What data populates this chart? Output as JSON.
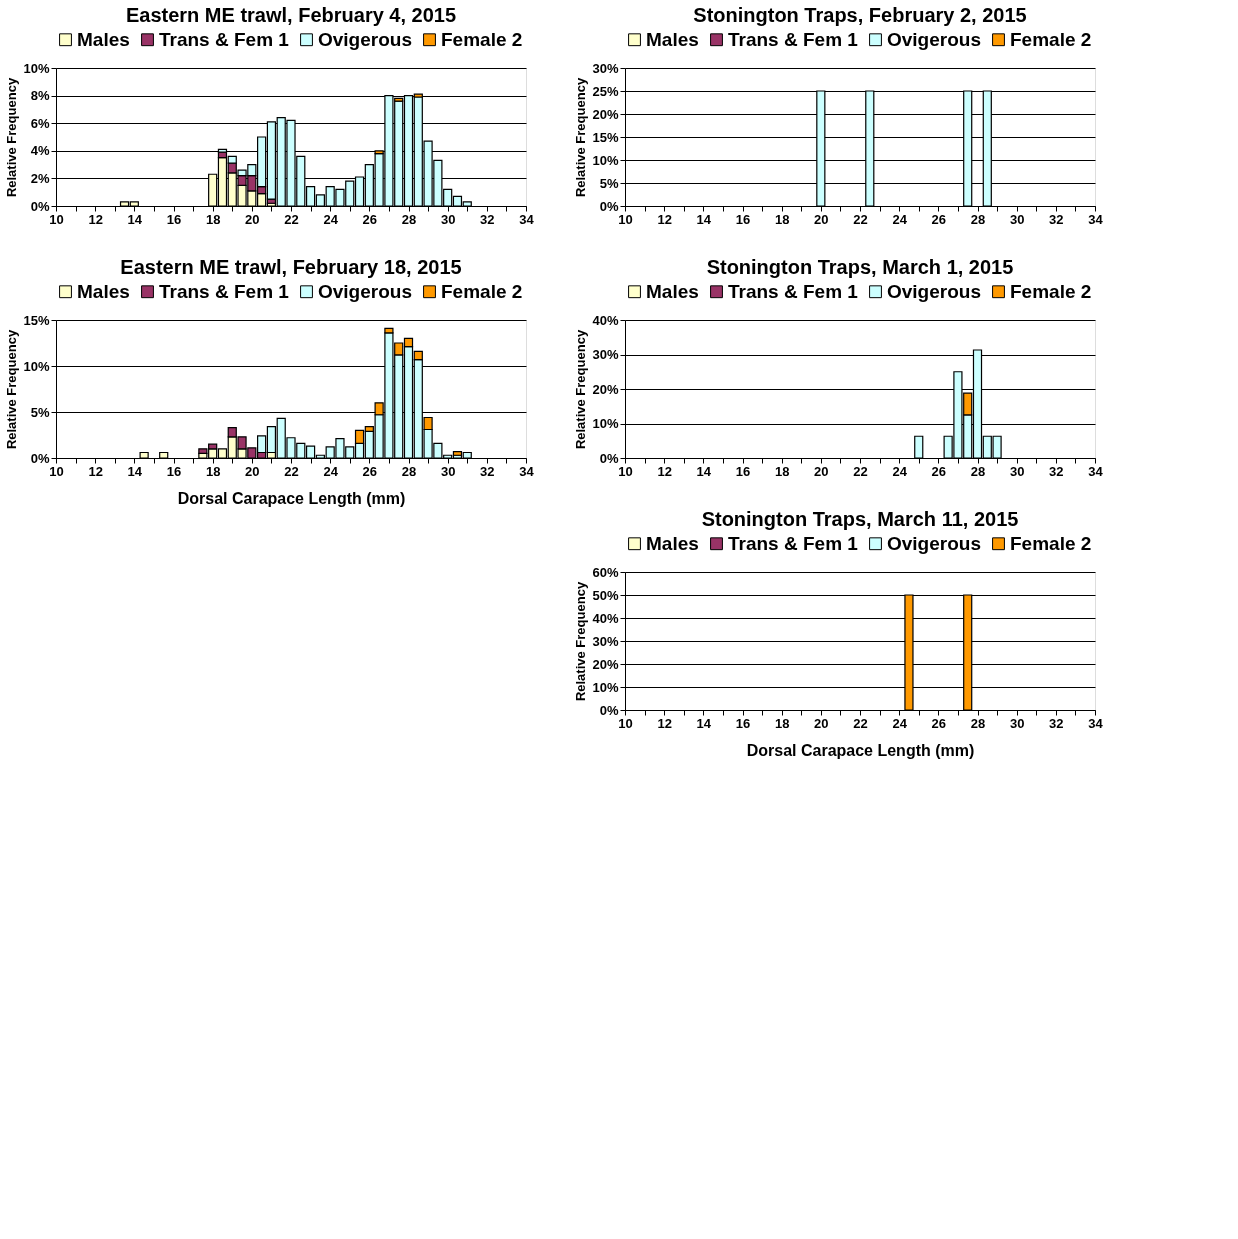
{
  "chart_data": [
    {
      "type": "bar",
      "stacked": true,
      "title": "Eastern ME trawl, February 4, 2015",
      "ylabel": "Relative Frequency",
      "legend": "top",
      "grid": "y",
      "x": [
        13.5,
        14,
        18,
        18.5,
        19,
        19.5,
        20,
        20.5,
        21,
        21.5,
        22,
        22.5,
        23,
        23.5,
        24,
        24.5,
        25,
        25.5,
        26,
        26.5,
        27,
        27.5,
        28,
        28.5,
        29,
        29.5,
        30,
        30.5,
        31
      ],
      "series": [
        {
          "name": "Males",
          "color": "#ffffcc",
          "values": [
            0.3,
            0.3,
            2.3,
            3.5,
            2.4,
            1.5,
            1.1,
            0.9,
            0.2,
            null,
            null,
            null,
            null,
            null,
            null,
            null,
            null,
            null,
            null,
            null,
            null,
            null,
            null,
            null,
            null,
            null,
            null,
            null,
            null
          ]
        },
        {
          "name": "Trans & Fem 1",
          "color": "#993366",
          "values": [
            null,
            null,
            null,
            0.4,
            0.7,
            0.7,
            1.1,
            0.5,
            0.3,
            null,
            null,
            null,
            null,
            null,
            null,
            null,
            null,
            null,
            null,
            null,
            null,
            null,
            null,
            null,
            null,
            null,
            null,
            null,
            null
          ]
        },
        {
          "name": "Ovigerous",
          "color": "#ccffff",
          "values": [
            null,
            null,
            null,
            0.2,
            0.5,
            0.4,
            0.8,
            3.6,
            5.6,
            6.4,
            6.2,
            3.6,
            1.4,
            0.8,
            1.4,
            1.2,
            1.8,
            2.1,
            3.0,
            3.8,
            8.0,
            7.6,
            8.0,
            7.9,
            4.7,
            3.3,
            1.2,
            0.7,
            0.3
          ]
        },
        {
          "name": "Female 2",
          "color": "#ff9900",
          "values": [
            null,
            null,
            null,
            null,
            null,
            null,
            null,
            null,
            null,
            null,
            null,
            null,
            null,
            null,
            null,
            null,
            null,
            null,
            null,
            0.2,
            null,
            0.2,
            null,
            0.2,
            null,
            null,
            null,
            null,
            null
          ]
        }
      ],
      "xlim": [
        10,
        34
      ],
      "xticks": [
        10,
        {
          "value": 11,
          "label": null
        },
        12,
        {
          "value": 13,
          "label": null
        },
        14,
        {
          "value": 15,
          "label": null
        },
        16,
        {
          "value": 17,
          "label": null
        },
        18,
        {
          "value": 19,
          "label": null
        },
        20,
        {
          "value": 21,
          "label": null
        },
        22,
        {
          "value": 23,
          "label": null
        },
        24,
        {
          "value": 25,
          "label": null
        },
        26,
        {
          "value": 27,
          "label": null
        },
        28,
        {
          "value": 29,
          "label": null
        },
        30,
        {
          "value": 31,
          "label": null
        },
        32,
        {
          "value": 33,
          "label": null
        },
        34
      ],
      "ylim": [
        0,
        10
      ],
      "yticks": [
        {
          "value": 0,
          "label": "0%"
        },
        {
          "value": 2,
          "label": "2%"
        },
        {
          "value": 4,
          "label": "4%"
        },
        {
          "value": 6,
          "label": "6%"
        },
        {
          "value": 8,
          "label": "8%"
        },
        {
          "value": 10,
          "label": "10%"
        }
      ]
    },
    {
      "type": "bar",
      "stacked": true,
      "title": "Stonington Traps, February 2, 2015",
      "ylabel": "Relative Frequency",
      "legend": "top",
      "grid": "y",
      "x": [
        20,
        22.5,
        27.5,
        28.5
      ],
      "series": [
        {
          "name": "Males",
          "color": "#ffffcc",
          "values": [
            null,
            null,
            null,
            null
          ]
        },
        {
          "name": "Trans & Fem 1",
          "color": "#993366",
          "values": [
            null,
            null,
            null,
            null
          ]
        },
        {
          "name": "Ovigerous",
          "color": "#ccffff",
          "values": [
            25,
            25,
            25,
            25
          ]
        },
        {
          "name": "Female 2",
          "color": "#ff9900",
          "values": [
            null,
            null,
            null,
            null
          ]
        }
      ],
      "xlim": [
        10,
        34
      ],
      "xticks": [
        10,
        {
          "value": 11,
          "label": null
        },
        12,
        {
          "value": 13,
          "label": null
        },
        14,
        {
          "value": 15,
          "label": null
        },
        16,
        {
          "value": 17,
          "label": null
        },
        18,
        {
          "value": 19,
          "label": null
        },
        20,
        {
          "value": 21,
          "label": null
        },
        22,
        {
          "value": 23,
          "label": null
        },
        24,
        {
          "value": 25,
          "label": null
        },
        26,
        {
          "value": 27,
          "label": null
        },
        28,
        {
          "value": 29,
          "label": null
        },
        30,
        {
          "value": 31,
          "label": null
        },
        32,
        {
          "value": 33,
          "label": null
        },
        34
      ],
      "ylim": [
        0,
        30
      ],
      "yticks": [
        {
          "value": 0,
          "label": "0%"
        },
        {
          "value": 5,
          "label": "5%"
        },
        {
          "value": 10,
          "label": "10%"
        },
        {
          "value": 15,
          "label": "15%"
        },
        {
          "value": 20,
          "label": "20%"
        },
        {
          "value": 25,
          "label": "25%"
        },
        {
          "value": 30,
          "label": "30%"
        }
      ]
    },
    {
      "type": "bar",
      "stacked": true,
      "title": "Eastern ME trawl, February 18, 2015",
      "xlabel": "Dorsal Carapace Length (mm)",
      "ylabel": "Relative Frequency",
      "legend": "top",
      "grid": "y",
      "x": [
        14.5,
        15.5,
        17.5,
        18,
        18.5,
        19,
        19.5,
        20,
        20.5,
        21,
        21.5,
        22,
        22.5,
        23,
        23.5,
        24,
        24.5,
        25,
        25.5,
        26,
        26.5,
        27,
        27.5,
        28,
        28.5,
        29,
        29.5,
        30,
        30.5,
        31
      ],
      "series": [
        {
          "name": "Males",
          "color": "#ffffcc",
          "values": [
            0.6,
            0.6,
            0.5,
            1.0,
            1.0,
            2.3,
            1.0,
            null,
            null,
            0.6,
            null,
            null,
            null,
            null,
            null,
            null,
            null,
            null,
            null,
            null,
            null,
            null,
            null,
            null,
            null,
            null,
            null,
            null,
            null,
            null
          ]
        },
        {
          "name": "Trans & Fem 1",
          "color": "#993366",
          "values": [
            null,
            null,
            0.5,
            0.5,
            null,
            1.0,
            1.3,
            1.1,
            0.6,
            null,
            null,
            null,
            null,
            null,
            null,
            null,
            null,
            null,
            null,
            null,
            null,
            null,
            null,
            null,
            null,
            null,
            null,
            null,
            null,
            null
          ]
        },
        {
          "name": "Ovigerous",
          "color": "#ccffff",
          "values": [
            null,
            null,
            null,
            null,
            null,
            null,
            null,
            null,
            1.8,
            2.8,
            4.3,
            2.2,
            1.6,
            1.3,
            0.3,
            1.2,
            2.1,
            1.2,
            1.6,
            2.9,
            4.7,
            13.6,
            11.2,
            12.1,
            10.7,
            3.1,
            1.6,
            0.3,
            0.3,
            0.6
          ]
        },
        {
          "name": "Female 2",
          "color": "#ff9900",
          "values": [
            null,
            null,
            null,
            null,
            null,
            null,
            null,
            null,
            null,
            null,
            null,
            null,
            null,
            null,
            null,
            null,
            null,
            null,
            1.4,
            0.5,
            1.3,
            0.5,
            1.3,
            0.9,
            0.9,
            1.3,
            null,
            null,
            0.4,
            null
          ]
        }
      ],
      "xlim": [
        10,
        34
      ],
      "xticks": [
        10,
        {
          "value": 11,
          "label": null
        },
        12,
        {
          "value": 13,
          "label": null
        },
        14,
        {
          "value": 15,
          "label": null
        },
        16,
        {
          "value": 17,
          "label": null
        },
        18,
        {
          "value": 19,
          "label": null
        },
        20,
        {
          "value": 21,
          "label": null
        },
        22,
        {
          "value": 23,
          "label": null
        },
        24,
        {
          "value": 25,
          "label": null
        },
        26,
        {
          "value": 27,
          "label": null
        },
        28,
        {
          "value": 29,
          "label": null
        },
        30,
        {
          "value": 31,
          "label": null
        },
        32,
        {
          "value": 33,
          "label": null
        },
        34
      ],
      "ylim": [
        0,
        15
      ],
      "yticks": [
        {
          "value": 0,
          "label": "0%"
        },
        {
          "value": 5,
          "label": "5%"
        },
        {
          "value": 10,
          "label": "10%"
        },
        {
          "value": 15,
          "label": "15%"
        }
      ]
    },
    {
      "type": "bar",
      "stacked": true,
      "title": "Stonington Traps, March 1, 2015",
      "ylabel": "Relative Frequency",
      "legend": "top",
      "grid": "y",
      "x": [
        25,
        26.5,
        27,
        27.5,
        28,
        28.5,
        29
      ],
      "series": [
        {
          "name": "Males",
          "color": "#ffffcc",
          "values": [
            null,
            null,
            null,
            null,
            null,
            null,
            null
          ]
        },
        {
          "name": "Trans & Fem 1",
          "color": "#993366",
          "values": [
            null,
            null,
            null,
            null,
            null,
            null,
            null
          ]
        },
        {
          "name": "Ovigerous",
          "color": "#ccffff",
          "values": [
            6.3,
            6.3,
            25,
            12.5,
            31.3,
            6.3,
            6.3
          ]
        },
        {
          "name": "Female 2",
          "color": "#ff9900",
          "values": [
            null,
            null,
            null,
            6.3,
            null,
            null,
            null
          ]
        }
      ],
      "xlim": [
        10,
        34
      ],
      "xticks": [
        10,
        {
          "value": 11,
          "label": null
        },
        12,
        {
          "value": 13,
          "label": null
        },
        14,
        {
          "value": 15,
          "label": null
        },
        16,
        {
          "value": 17,
          "label": null
        },
        18,
        {
          "value": 19,
          "label": null
        },
        20,
        {
          "value": 21,
          "label": null
        },
        22,
        {
          "value": 23,
          "label": null
        },
        24,
        {
          "value": 25,
          "label": null
        },
        26,
        {
          "value": 27,
          "label": null
        },
        28,
        {
          "value": 29,
          "label": null
        },
        30,
        {
          "value": 31,
          "label": null
        },
        32,
        {
          "value": 33,
          "label": null
        },
        34
      ],
      "ylim": [
        0,
        40
      ],
      "yticks": [
        {
          "value": 0,
          "label": "0%"
        },
        {
          "value": 10,
          "label": "10%"
        },
        {
          "value": 20,
          "label": "20%"
        },
        {
          "value": 30,
          "label": "30%"
        },
        {
          "value": 40,
          "label": "40%"
        }
      ]
    },
    {
      "type": "bar",
      "stacked": true,
      "title": "Stonington Traps, March 11, 2015",
      "xlabel": "Dorsal Carapace Length (mm)",
      "ylabel": "Relative Frequency",
      "legend": "top",
      "grid": "y",
      "x": [
        24.5,
        27.5
      ],
      "series": [
        {
          "name": "Males",
          "color": "#ffffcc",
          "values": [
            null,
            null
          ]
        },
        {
          "name": "Trans & Fem 1",
          "color": "#993366",
          "values": [
            null,
            null
          ]
        },
        {
          "name": "Ovigerous",
          "color": "#ccffff",
          "values": [
            null,
            null
          ]
        },
        {
          "name": "Female 2",
          "color": "#ff9900",
          "values": [
            50,
            50
          ]
        }
      ],
      "xlim": [
        10,
        34
      ],
      "xticks": [
        10,
        {
          "value": 11,
          "label": null
        },
        12,
        {
          "value": 13,
          "label": null
        },
        14,
        {
          "value": 15,
          "label": null
        },
        16,
        {
          "value": 17,
          "label": null
        },
        18,
        {
          "value": 19,
          "label": null
        },
        20,
        {
          "value": 21,
          "label": null
        },
        22,
        {
          "value": 23,
          "label": null
        },
        24,
        {
          "value": 25,
          "label": null
        },
        26,
        {
          "value": 27,
          "label": null
        },
        28,
        {
          "value": 29,
          "label": null
        },
        30,
        {
          "value": 31,
          "label": null
        },
        32,
        {
          "value": 33,
          "label": null
        },
        34
      ],
      "ylim": [
        0,
        60
      ],
      "yticks": [
        {
          "value": 0,
          "label": "0%"
        },
        {
          "value": 10,
          "label": "10%"
        },
        {
          "value": 20,
          "label": "20%"
        },
        {
          "value": 30,
          "label": "30%"
        },
        {
          "value": 40,
          "label": "40%"
        },
        {
          "value": 50,
          "label": "50%"
        },
        {
          "value": 60,
          "label": "60%"
        }
      ]
    }
  ]
}
